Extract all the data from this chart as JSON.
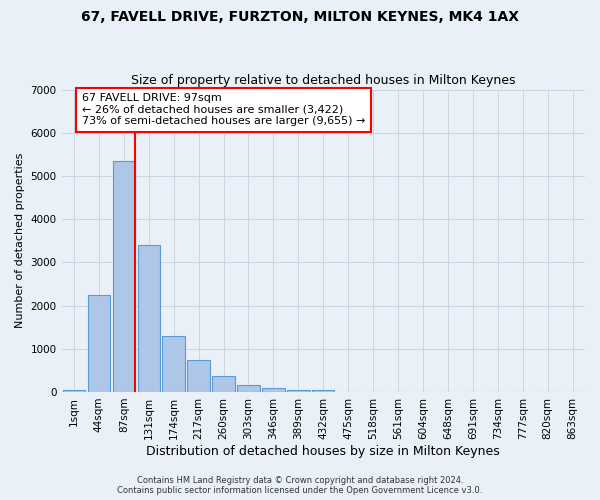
{
  "title": "67, FAVELL DRIVE, FURZTON, MILTON KEYNES, MK4 1AX",
  "subtitle": "Size of property relative to detached houses in Milton Keynes",
  "xlabel": "Distribution of detached houses by size in Milton Keynes",
  "ylabel": "Number of detached properties",
  "footer_line1": "Contains HM Land Registry data © Crown copyright and database right 2024.",
  "footer_line2": "Contains public sector information licensed under the Open Government Licence v3.0.",
  "categories": [
    "1sqm",
    "44sqm",
    "87sqm",
    "131sqm",
    "174sqm",
    "217sqm",
    "260sqm",
    "303sqm",
    "346sqm",
    "389sqm",
    "432sqm",
    "475sqm",
    "518sqm",
    "561sqm",
    "604sqm",
    "648sqm",
    "691sqm",
    "734sqm",
    "777sqm",
    "820sqm",
    "863sqm"
  ],
  "bar_values": [
    50,
    2250,
    5350,
    3400,
    1300,
    750,
    380,
    150,
    100,
    55,
    45,
    10,
    5,
    3,
    2,
    2,
    1,
    1,
    1,
    1,
    1
  ],
  "bar_color": "#aec6e8",
  "bar_edge_color": "#5b9bd5",
  "vline_x_index": 2,
  "vline_color": "red",
  "annotation_text": "67 FAVELL DRIVE: 97sqm\n← 26% of detached houses are smaller (3,422)\n73% of semi-detached houses are larger (9,655) →",
  "annotation_box_color": "white",
  "annotation_box_edge_color": "red",
  "ylim": [
    0,
    7000
  ],
  "grid_color": "#cdd5e0",
  "background_color": "#eaf0f8",
  "title_fontsize": 10,
  "subtitle_fontsize": 9,
  "ylabel_fontsize": 8,
  "xlabel_fontsize": 9,
  "tick_fontsize": 7.5,
  "annotation_fontsize": 8,
  "footer_fontsize": 6
}
